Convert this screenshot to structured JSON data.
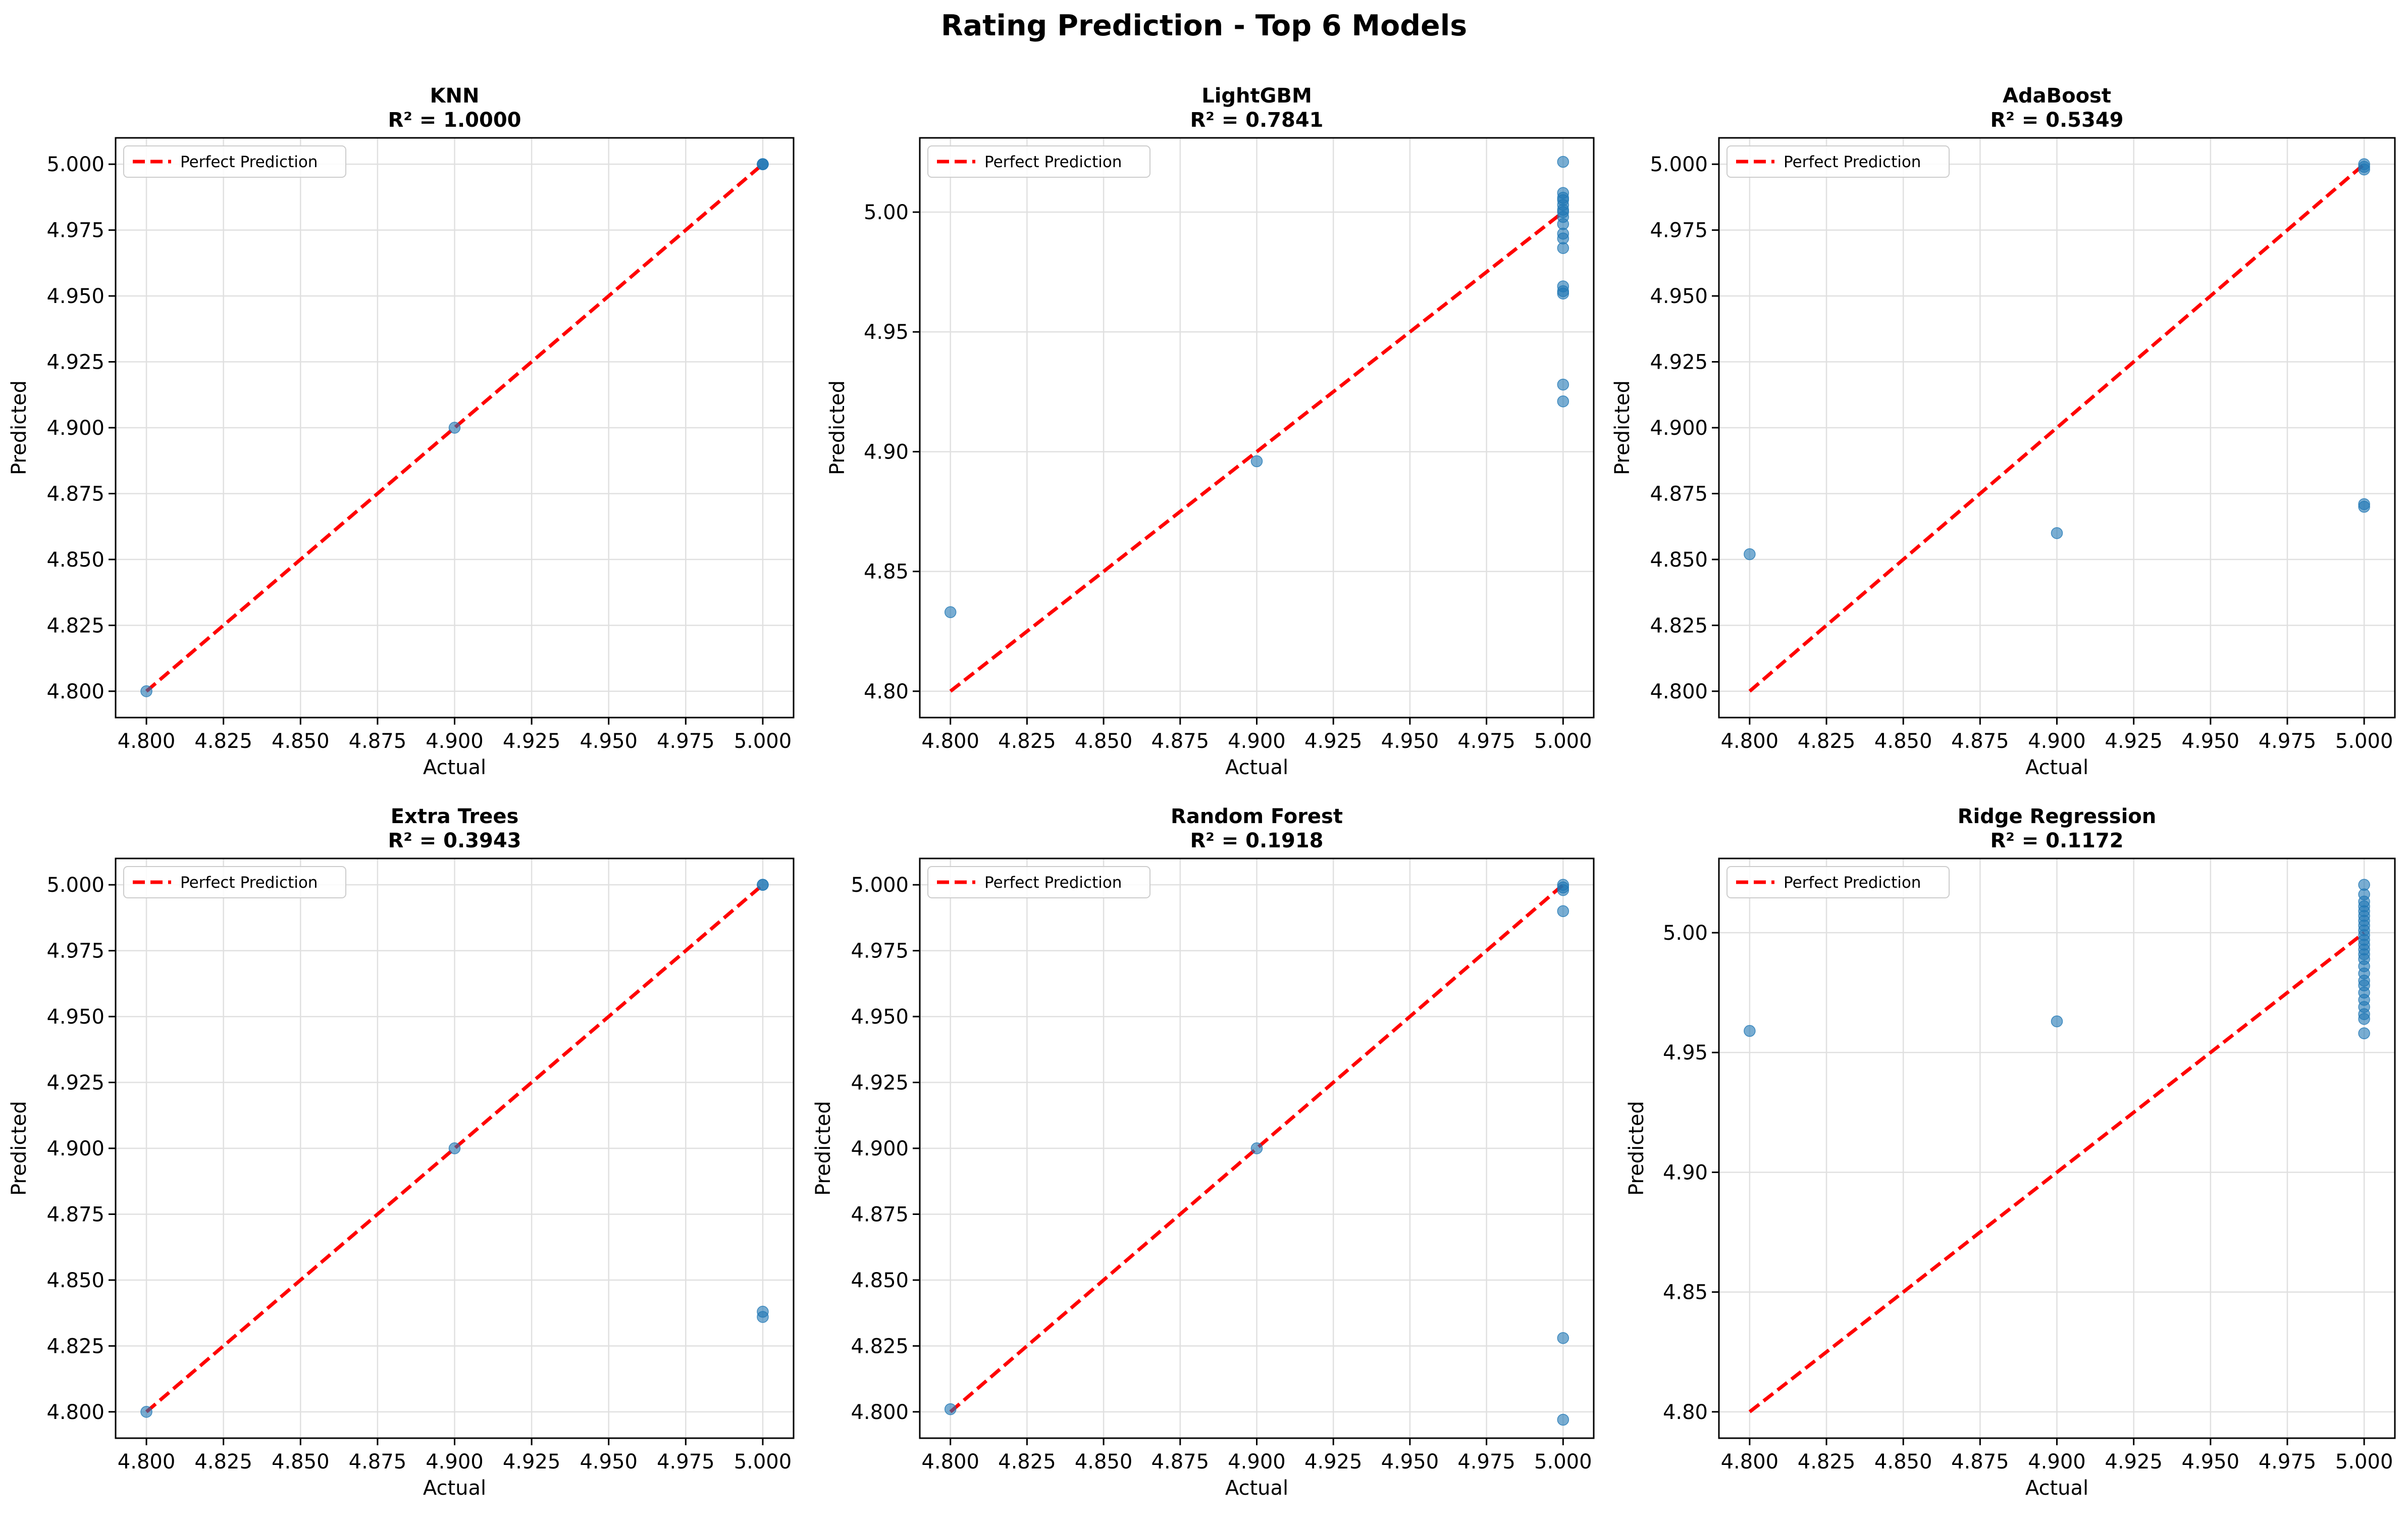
{
  "title": "Rating Prediction - Top 6 Models",
  "colors": {
    "point": "#1f77b4",
    "perfect_line": "#ff0000",
    "grid": "#e0e0e0",
    "axis": "#000000"
  },
  "chart_data": [
    {
      "type": "scatter",
      "title": "KNN",
      "subtitle": "R² = 1.0000",
      "xlabel": "Actual",
      "ylabel": "Predicted",
      "xlim": [
        4.79,
        5.01
      ],
      "ylim": [
        4.79,
        5.01
      ],
      "xticks": [
        "4.800",
        "4.825",
        "4.850",
        "4.875",
        "4.900",
        "4.925",
        "4.950",
        "4.975",
        "5.000"
      ],
      "yticks": [
        "4.800",
        "4.825",
        "4.850",
        "4.875",
        "4.900",
        "4.925",
        "4.950",
        "4.975",
        "5.000"
      ],
      "grid": true,
      "legend": "top-left",
      "reference_line": {
        "name": "Perfect Prediction",
        "from": [
          4.8,
          4.8
        ],
        "to": [
          5.0,
          5.0
        ]
      },
      "points": [
        [
          4.8,
          4.8
        ],
        [
          4.9,
          4.9
        ],
        [
          5.0,
          5.0
        ],
        [
          5.0,
          5.0
        ],
        [
          5.0,
          5.0
        ]
      ]
    },
    {
      "type": "scatter",
      "title": "LightGBM",
      "subtitle": "R² = 0.7841",
      "xlabel": "Actual",
      "ylabel": "Predicted",
      "xlim": [
        4.79,
        5.01
      ],
      "ylim": [
        4.789,
        5.031
      ],
      "xticks": [
        "4.800",
        "4.825",
        "4.850",
        "4.875",
        "4.900",
        "4.925",
        "4.950",
        "4.975",
        "5.000"
      ],
      "yticks": [
        "4.80",
        "4.85",
        "4.90",
        "4.95",
        "5.00"
      ],
      "grid": true,
      "legend": "top-left",
      "reference_line": {
        "name": "Perfect Prediction",
        "from": [
          4.8,
          4.8
        ],
        "to": [
          5.0,
          5.0
        ]
      },
      "points": [
        [
          4.8,
          4.833
        ],
        [
          4.9,
          4.896
        ],
        [
          5.0,
          5.021
        ],
        [
          5.0,
          5.008
        ],
        [
          5.0,
          5.006
        ],
        [
          5.0,
          5.005
        ],
        [
          5.0,
          5.003
        ],
        [
          5.0,
          5.001
        ],
        [
          5.0,
          5.0
        ],
        [
          5.0,
          4.998
        ],
        [
          5.0,
          4.995
        ],
        [
          5.0,
          4.991
        ],
        [
          5.0,
          4.989
        ],
        [
          5.0,
          4.985
        ],
        [
          5.0,
          4.969
        ],
        [
          5.0,
          4.967
        ],
        [
          5.0,
          4.966
        ],
        [
          5.0,
          4.928
        ],
        [
          5.0,
          4.921
        ]
      ]
    },
    {
      "type": "scatter",
      "title": "AdaBoost",
      "subtitle": "R² = 0.5349",
      "xlabel": "Actual",
      "ylabel": "Predicted",
      "xlim": [
        4.79,
        5.01
      ],
      "ylim": [
        4.79,
        5.01
      ],
      "xticks": [
        "4.800",
        "4.825",
        "4.850",
        "4.875",
        "4.900",
        "4.925",
        "4.950",
        "4.975",
        "5.000"
      ],
      "yticks": [
        "4.800",
        "4.825",
        "4.850",
        "4.875",
        "4.900",
        "4.925",
        "4.950",
        "4.975",
        "5.000"
      ],
      "grid": true,
      "legend": "top-left",
      "reference_line": {
        "name": "Perfect Prediction",
        "from": [
          4.8,
          4.8
        ],
        "to": [
          5.0,
          5.0
        ]
      },
      "points": [
        [
          4.8,
          4.852
        ],
        [
          4.9,
          4.86
        ],
        [
          5.0,
          5.0
        ],
        [
          5.0,
          4.999
        ],
        [
          5.0,
          4.998
        ],
        [
          5.0,
          4.871
        ],
        [
          5.0,
          4.87
        ]
      ]
    },
    {
      "type": "scatter",
      "title": "Extra Trees",
      "subtitle": "R² = 0.3943",
      "xlabel": "Actual",
      "ylabel": "Predicted",
      "xlim": [
        4.79,
        5.01
      ],
      "ylim": [
        4.79,
        5.01
      ],
      "xticks": [
        "4.800",
        "4.825",
        "4.850",
        "4.875",
        "4.900",
        "4.925",
        "4.950",
        "4.975",
        "5.000"
      ],
      "yticks": [
        "4.800",
        "4.825",
        "4.850",
        "4.875",
        "4.900",
        "4.925",
        "4.950",
        "4.975",
        "5.000"
      ],
      "grid": true,
      "legend": "top-left",
      "reference_line": {
        "name": "Perfect Prediction",
        "from": [
          4.8,
          4.8
        ],
        "to": [
          5.0,
          5.0
        ]
      },
      "points": [
        [
          4.8,
          4.8
        ],
        [
          4.9,
          4.9
        ],
        [
          5.0,
          5.0
        ],
        [
          5.0,
          5.0
        ],
        [
          5.0,
          4.838
        ],
        [
          5.0,
          4.836
        ]
      ]
    },
    {
      "type": "scatter",
      "title": "Random Forest",
      "subtitle": "R² = 0.1918",
      "xlabel": "Actual",
      "ylabel": "Predicted",
      "xlim": [
        4.79,
        5.01
      ],
      "ylim": [
        4.79,
        5.01
      ],
      "xticks": [
        "4.800",
        "4.825",
        "4.850",
        "4.875",
        "4.900",
        "4.925",
        "4.950",
        "4.975",
        "5.000"
      ],
      "yticks": [
        "4.800",
        "4.825",
        "4.850",
        "4.875",
        "4.900",
        "4.925",
        "4.950",
        "4.975",
        "5.000"
      ],
      "grid": true,
      "legend": "top-left",
      "reference_line": {
        "name": "Perfect Prediction",
        "from": [
          4.8,
          4.8
        ],
        "to": [
          5.0,
          5.0
        ]
      },
      "points": [
        [
          4.8,
          4.801
        ],
        [
          4.9,
          4.9
        ],
        [
          5.0,
          5.0
        ],
        [
          5.0,
          4.999
        ],
        [
          5.0,
          4.998
        ],
        [
          5.0,
          4.99
        ],
        [
          5.0,
          4.828
        ],
        [
          5.0,
          4.797
        ]
      ]
    },
    {
      "type": "scatter",
      "title": "Ridge Regression",
      "subtitle": "R² = 0.1172",
      "xlabel": "Actual",
      "ylabel": "Predicted",
      "xlim": [
        4.79,
        5.01
      ],
      "ylim": [
        4.789,
        5.031
      ],
      "xticks": [
        "4.800",
        "4.825",
        "4.850",
        "4.875",
        "4.900",
        "4.925",
        "4.950",
        "4.975",
        "5.000"
      ],
      "yticks": [
        "4.80",
        "4.85",
        "4.90",
        "4.95",
        "5.00"
      ],
      "grid": true,
      "legend": "top-left",
      "reference_line": {
        "name": "Perfect Prediction",
        "from": [
          4.8,
          4.8
        ],
        "to": [
          5.0,
          5.0
        ]
      },
      "points": [
        [
          4.8,
          4.959
        ],
        [
          4.9,
          4.963
        ],
        [
          5.0,
          5.02
        ],
        [
          5.0,
          5.016
        ],
        [
          5.0,
          5.013
        ],
        [
          5.0,
          5.011
        ],
        [
          5.0,
          5.009
        ],
        [
          5.0,
          5.007
        ],
        [
          5.0,
          5.005
        ],
        [
          5.0,
          5.003
        ],
        [
          5.0,
          5.001
        ],
        [
          5.0,
          4.999
        ],
        [
          5.0,
          4.997
        ],
        [
          5.0,
          4.995
        ],
        [
          5.0,
          4.993
        ],
        [
          5.0,
          4.991
        ],
        [
          5.0,
          4.989
        ],
        [
          5.0,
          4.986
        ],
        [
          5.0,
          4.983
        ],
        [
          5.0,
          4.98
        ],
        [
          5.0,
          4.978
        ],
        [
          5.0,
          4.975
        ],
        [
          5.0,
          4.972
        ],
        [
          5.0,
          4.969
        ],
        [
          5.0,
          4.966
        ],
        [
          5.0,
          4.964
        ],
        [
          5.0,
          4.958
        ]
      ]
    }
  ]
}
